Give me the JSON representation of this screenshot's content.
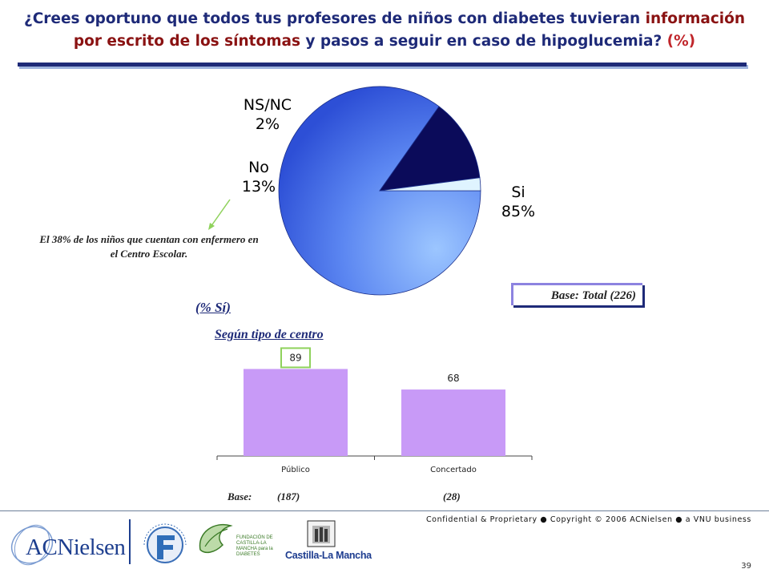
{
  "header": {
    "title_line1_plain": "¿Crees oportuno que todos tus profesores de niños con diabetes tuvieran ",
    "title_line1_highlight": "información",
    "title_line2_highlight": "por escrito de los síntomas",
    "title_line2_plain": " y pasos a seguir en caso de hipoglucemia? ",
    "title_suffix": "(%)"
  },
  "pie": {
    "labels": [
      {
        "name": "Si",
        "value_text": "85%"
      },
      {
        "name": "No",
        "value_text": "13%"
      },
      {
        "name": "NS/NC",
        "value_text": "2%"
      }
    ]
  },
  "note": "El 38% de los niños que cuentan con enfermero en el Centro Escolar.",
  "base_total": "Base: Total (226)",
  "bar_section": {
    "subtitle": "(% Sí)",
    "group_label": "Según tipo de centro",
    "base_label": "Base:",
    "base_values": [
      "(187)",
      "(28)"
    ]
  },
  "chart_data": [
    {
      "type": "pie",
      "categories": [
        "Si",
        "No",
        "NS/NC"
      ],
      "values": [
        85,
        13,
        2
      ],
      "colors": [
        "#3d63e6",
        "#0b0b5a",
        "#dff4ff"
      ],
      "legend": "labels next to slices"
    },
    {
      "type": "bar",
      "categories": [
        "Público",
        "Concertado"
      ],
      "values": [
        89,
        68
      ],
      "data_labels": [
        "89",
        "68"
      ],
      "highlighted_label": "89",
      "ylim": [
        0,
        100
      ],
      "bar_color": "#c89af7",
      "grid": false
    }
  ],
  "footer": {
    "confidential": "Confidential & Proprietary ● Copyright © 2006 ACNielsen ● a VNU business",
    "page_number": "39"
  },
  "logos": {
    "acnielsen": "ACNielsen",
    "fundacion_diabetes": "FUNDACION PARA LA DIABETES",
    "fundacion_clm": "FUNDACIÓN DE CASTILLA-LA MANCHA para la DIABETES",
    "castilla_la_mancha": "Castilla-La Mancha"
  },
  "colors": {
    "title_blue": "#1e2a78",
    "title_highlight": "#8a1212",
    "accent_red": "#c0262b",
    "highlight_box": "#8fd25c",
    "arrow_green": "#8fd25c"
  }
}
